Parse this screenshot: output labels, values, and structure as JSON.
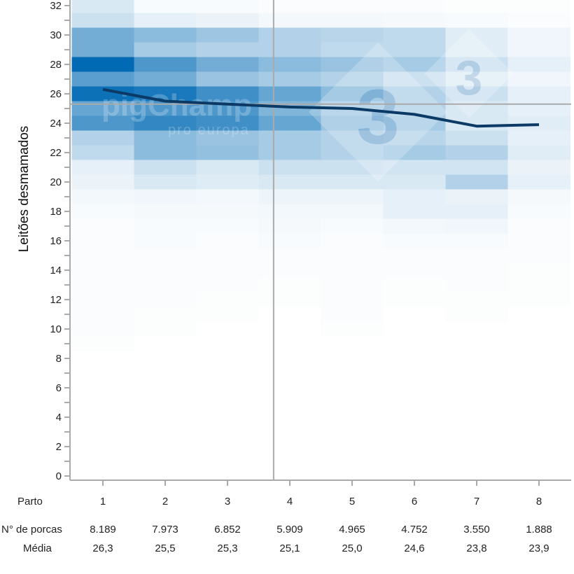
{
  "chart_data": {
    "type": "heatmap",
    "ylabel": "Leitões desmamados",
    "xlabel": "Parto",
    "x": [
      1,
      2,
      3,
      4,
      5,
      6,
      7,
      8
    ],
    "ylim": [
      0,
      32
    ],
    "yticks": [
      0,
      2,
      4,
      6,
      8,
      10,
      12,
      14,
      16,
      18,
      20,
      22,
      24,
      26,
      28,
      30,
      32
    ],
    "heat_color": "#006ab4",
    "heat_y_values": [
      33,
      32,
      31,
      30,
      29,
      28,
      27,
      26,
      25,
      24,
      23,
      22,
      21,
      20,
      19,
      18,
      17,
      16,
      15,
      14,
      13,
      12,
      11,
      10,
      9
    ],
    "heat_intensity": [
      [
        0.12,
        0.15,
        0.2,
        0.55,
        0.55,
        1.0,
        0.65,
        0.95,
        0.6,
        0.7,
        0.3,
        0.25,
        0.1,
        0.08,
        0.05,
        0.03,
        0.02,
        0.02,
        0.02,
        0.02,
        0.02,
        0.02,
        0.02,
        0.02,
        0.01
      ],
      [
        0.03,
        0.03,
        0.1,
        0.45,
        0.35,
        0.7,
        0.55,
        0.9,
        0.7,
        0.8,
        0.45,
        0.45,
        0.2,
        0.15,
        0.06,
        0.04,
        0.03,
        0.03,
        0.02,
        0.02,
        0.02,
        0.02,
        0.01,
        0.01,
        0
      ],
      [
        0.03,
        0.03,
        0.08,
        0.38,
        0.3,
        0.55,
        0.4,
        0.75,
        0.7,
        0.75,
        0.4,
        0.42,
        0.15,
        0.13,
        0.05,
        0.04,
        0.03,
        0.02,
        0.02,
        0.02,
        0.02,
        0.01,
        0.01,
        0,
        0
      ],
      [
        0.02,
        0.02,
        0.05,
        0.3,
        0.3,
        0.45,
        0.35,
        0.6,
        0.5,
        0.6,
        0.35,
        0.35,
        0.2,
        0.15,
        0.07,
        0.05,
        0.04,
        0.03,
        0.02,
        0.02,
        0.01,
        0.01,
        0,
        0,
        0
      ],
      [
        0.02,
        0.02,
        0.05,
        0.28,
        0.25,
        0.4,
        0.3,
        0.45,
        0.35,
        0.4,
        0.3,
        0.3,
        0.2,
        0.15,
        0.07,
        0.05,
        0.03,
        0.02,
        0.02,
        0.02,
        0.02,
        0.02,
        0.02,
        0.01,
        0
      ],
      [
        0.01,
        0.02,
        0.04,
        0.25,
        0.25,
        0.35,
        0.2,
        0.3,
        0.3,
        0.35,
        0.28,
        0.35,
        0.18,
        0.15,
        0.1,
        0.1,
        0.05,
        0.03,
        0.02,
        0.02,
        0.01,
        0.01,
        0,
        0,
        0
      ],
      [
        0,
        0.01,
        0.03,
        0.12,
        0.12,
        0.2,
        0.12,
        0.2,
        0.15,
        0.15,
        0.2,
        0.3,
        0.18,
        0.3,
        0.08,
        0.1,
        0.06,
        0.03,
        0.02,
        0.02,
        0.02,
        0.01,
        0.01,
        0,
        0
      ],
      [
        0,
        0.01,
        0.02,
        0.06,
        0.06,
        0.1,
        0.06,
        0.1,
        0.1,
        0.12,
        0.1,
        0.12,
        0.08,
        0.1,
        0.04,
        0.03,
        0.02,
        0.02,
        0.02,
        0.01,
        0.01,
        0.01,
        0,
        0,
        0
      ]
    ],
    "series": [
      {
        "type": "line",
        "color": "#0b3a66",
        "values": [
          26.3,
          25.5,
          25.3,
          25.1,
          25.0,
          24.6,
          23.8,
          23.9
        ]
      }
    ],
    "reference_lines": {
      "horizontal_y": 25.3,
      "vertical_x": 3.74,
      "color": "#aaaaaa"
    },
    "grid": false
  },
  "table": {
    "header_label": "Parto",
    "parto": [
      "1",
      "2",
      "3",
      "4",
      "5",
      "6",
      "7",
      "8"
    ],
    "rows": [
      {
        "label": "N° de porcas",
        "values": [
          "8.189",
          "7.973",
          "6.852",
          "5.909",
          "4.965",
          "4.752",
          "3.550",
          "1.888"
        ]
      },
      {
        "label": "Média",
        "values": [
          "26,3",
          "25,5",
          "25,3",
          "25,1",
          "25,0",
          "24,6",
          "23,8",
          "23,9"
        ]
      }
    ]
  },
  "watermark": {
    "brand": "pigChamp",
    "sub": "pro europa",
    "badge": "3"
  }
}
